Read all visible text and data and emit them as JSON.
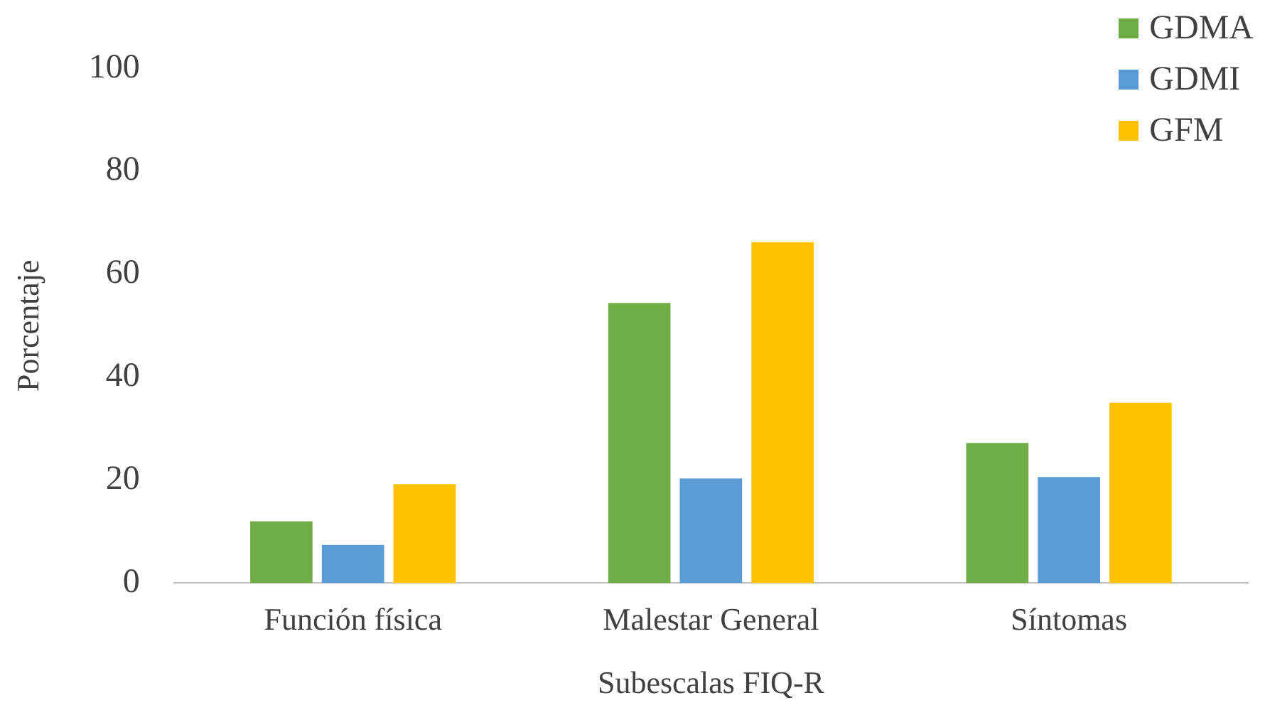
{
  "chart_data": {
    "type": "bar",
    "xlabel": "Subescalas FIQ-R",
    "ylabel": "Porcentaje",
    "categories": [
      "Función física",
      "Malestar General",
      "Síntomas"
    ],
    "series": [
      {
        "name": "GDMA",
        "color": "#70ad47",
        "values": [
          12.0,
          54.4,
          27.2
        ]
      },
      {
        "name": "GDMI",
        "color": "#5b9bd5",
        "values": [
          7.4,
          20.3,
          20.6
        ]
      },
      {
        "name": "GFM",
        "color": "#ffc000",
        "values": [
          19.2,
          66.2,
          35.0
        ]
      }
    ],
    "ylim": [
      0,
      100
    ],
    "yticks": [
      0,
      20,
      40,
      60,
      80,
      100
    ],
    "grid": false,
    "legend": "top right"
  }
}
